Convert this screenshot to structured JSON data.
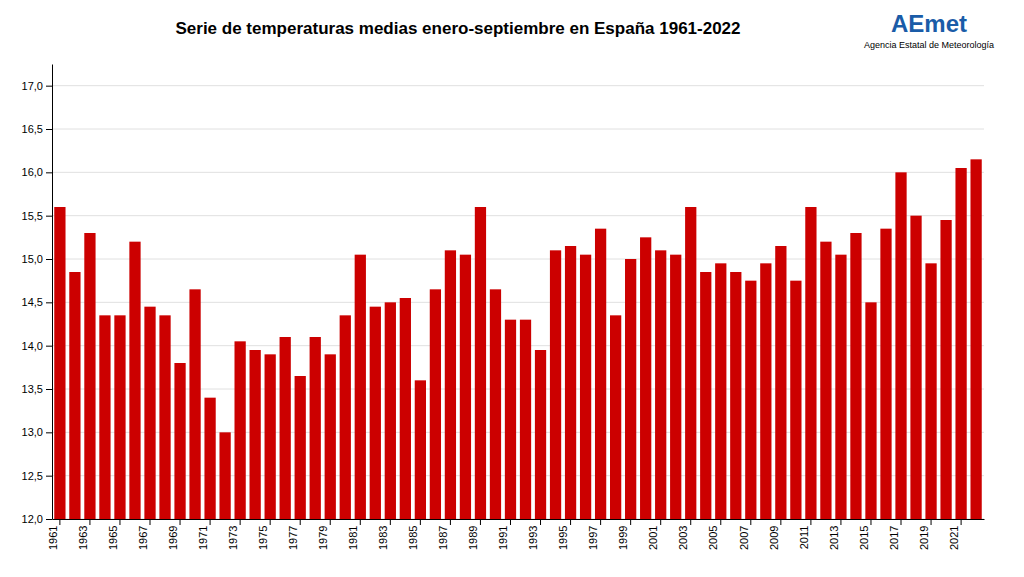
{
  "chart_data": {
    "type": "bar",
    "title": "Serie de temperaturas medias enero-septiembre en España 1961-2022",
    "annotations": [
      "AEmet",
      "Agencia Estatal de Meteorología"
    ],
    "categories": [
      "1961",
      null,
      "1963",
      null,
      "1965",
      null,
      "1967",
      null,
      "1969",
      null,
      "1971",
      null,
      "1973",
      null,
      "1975",
      null,
      "1977",
      null,
      "1979",
      null,
      "1981",
      null,
      "1983",
      null,
      "1985",
      null,
      "1987",
      null,
      "1989",
      null,
      "1991",
      null,
      "1993",
      null,
      "1995",
      null,
      "1997",
      null,
      "1999",
      null,
      "2001",
      null,
      "2003",
      null,
      "2005",
      null,
      "2007",
      null,
      "2009",
      null,
      "2011",
      null,
      "2013",
      null,
      "2015",
      null,
      "2017",
      null,
      "2019",
      null,
      "2021",
      null
    ],
    "values": [
      15.6,
      14.85,
      15.3,
      14.35,
      14.35,
      15.2,
      14.45,
      14.35,
      13.8,
      14.65,
      13.4,
      13.0,
      14.05,
      13.95,
      13.9,
      14.1,
      13.65,
      14.1,
      13.9,
      14.35,
      15.05,
      14.45,
      14.5,
      14.55,
      13.6,
      14.65,
      15.1,
      15.05,
      15.6,
      14.65,
      14.3,
      14.3,
      13.95,
      15.1,
      15.15,
      15.05,
      15.35,
      14.35,
      15.0,
      15.25,
      15.1,
      15.05,
      15.6,
      14.85,
      14.95,
      14.85,
      14.75,
      14.95,
      15.15,
      14.75,
      15.6,
      15.2,
      15.05,
      15.3,
      14.5,
      15.35,
      16.0,
      15.5,
      14.95,
      15.45,
      16.05,
      16.15
    ],
    "color": "#cc0000",
    "ylim": [
      12.0,
      17.25
    ],
    "yticks": [
      {
        "value": 12.0,
        "label": "12,0"
      },
      {
        "value": 12.5,
        "label": "12,5"
      },
      {
        "value": 13.0,
        "label": "13,0"
      },
      {
        "value": 13.5,
        "label": "13,5"
      },
      {
        "value": 14.0,
        "label": "14,0"
      },
      {
        "value": 14.5,
        "label": "14,5"
      },
      {
        "value": 15.0,
        "label": "15,0"
      },
      {
        "value": 15.5,
        "label": "15,5"
      },
      {
        "value": 16.0,
        "label": "16,0"
      },
      {
        "value": 16.5,
        "label": "16,5"
      },
      {
        "value": 17.0,
        "label": "17,0"
      }
    ],
    "grid": true
  }
}
